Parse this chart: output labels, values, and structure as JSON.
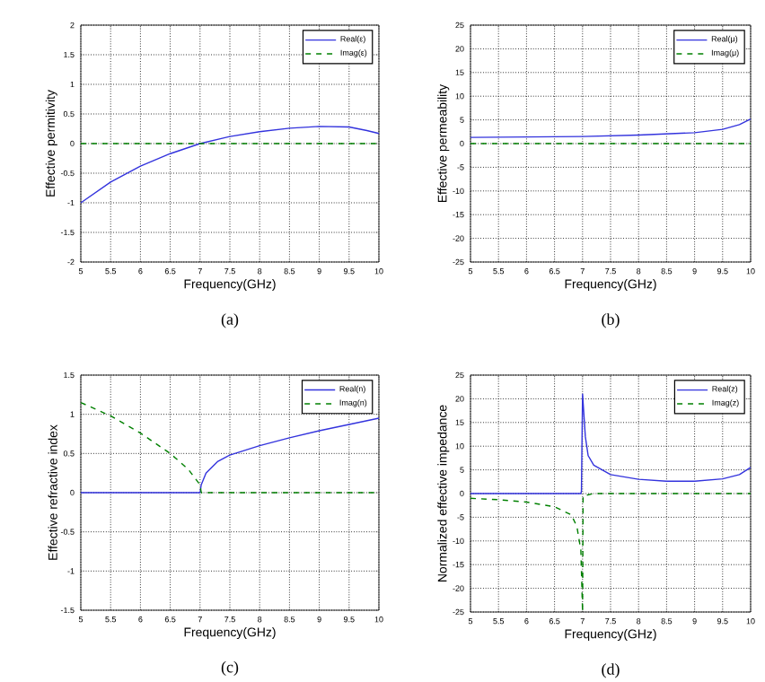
{
  "chart_data": [
    {
      "type": "line",
      "xlabel": "Frequency(GHz)",
      "ylabel": "Effective permitivity",
      "annotations": [
        "(a)"
      ],
      "grid": true,
      "legend": "top right",
      "xlim": [
        5,
        10
      ],
      "ylim": [
        -2,
        2
      ],
      "xticks": [
        5,
        5.5,
        6,
        6.5,
        7,
        7.5,
        8,
        8.5,
        9,
        9.5,
        10
      ],
      "yticks": [
        -2,
        -1.5,
        -1,
        -0.5,
        0,
        0.5,
        1,
        1.5,
        2
      ],
      "series": [
        {
          "name": "Real(ε)",
          "color": "#3333dd",
          "line_style": "solid",
          "x": [
            5,
            5.5,
            6,
            6.5,
            7,
            7.5,
            8,
            8.5,
            9,
            9.5,
            9.8,
            10
          ],
          "values": [
            -1.0,
            -0.65,
            -0.38,
            -0.17,
            0.0,
            0.12,
            0.2,
            0.26,
            0.29,
            0.28,
            0.22,
            0.17
          ]
        },
        {
          "name": "Imag(ε)",
          "color": "#008000",
          "line_style": "dashed",
          "x": [
            5,
            10
          ],
          "values": [
            0,
            0
          ]
        }
      ]
    },
    {
      "type": "line",
      "xlabel": "Frequency(GHz)",
      "ylabel": "Effective permeability",
      "annotations": [
        "(b)"
      ],
      "grid": true,
      "legend": "top right",
      "xlim": [
        5,
        10
      ],
      "ylim": [
        -25,
        25
      ],
      "xticks": [
        5,
        5.5,
        6,
        6.5,
        7,
        7.5,
        8,
        8.5,
        9,
        9.5,
        10
      ],
      "yticks": [
        -25,
        -20,
        -15,
        -10,
        -5,
        0,
        5,
        10,
        15,
        20,
        25
      ],
      "series": [
        {
          "name": "Real(μ)",
          "color": "#3333dd",
          "line_style": "solid",
          "x": [
            5,
            6,
            7,
            8,
            9,
            9.5,
            9.8,
            10
          ],
          "values": [
            1.3,
            1.4,
            1.5,
            1.8,
            2.3,
            3.0,
            4.0,
            5.2
          ]
        },
        {
          "name": "Imag(μ)",
          "color": "#008000",
          "line_style": "dashed",
          "x": [
            5,
            10
          ],
          "values": [
            0,
            0
          ]
        }
      ]
    },
    {
      "type": "line",
      "xlabel": "Frequency(GHz)",
      "ylabel": "Effective refractive index",
      "annotations": [
        "(c)"
      ],
      "grid": true,
      "legend": "top right",
      "xlim": [
        5,
        10
      ],
      "ylim": [
        -1.5,
        1.5
      ],
      "xticks": [
        5,
        5.5,
        6,
        6.5,
        7,
        7.5,
        8,
        8.5,
        9,
        9.5,
        10
      ],
      "yticks": [
        -1.5,
        -1,
        -0.5,
        0,
        0.5,
        1,
        1.5
      ],
      "series": [
        {
          "name": "Real(n)",
          "color": "#3333dd",
          "line_style": "solid",
          "x": [
            5,
            7,
            7.02,
            7.1,
            7.3,
            7.5,
            8,
            8.5,
            9,
            9.5,
            10
          ],
          "values": [
            0,
            0,
            0.1,
            0.25,
            0.4,
            0.48,
            0.6,
            0.7,
            0.79,
            0.87,
            0.95
          ]
        },
        {
          "name": "Imag(n)",
          "color": "#008000",
          "line_style": "dashed",
          "x": [
            5,
            5.5,
            6,
            6.5,
            6.8,
            7,
            7.02,
            10
          ],
          "values": [
            1.15,
            0.98,
            0.76,
            0.5,
            0.3,
            0.1,
            0,
            0
          ]
        }
      ]
    },
    {
      "type": "line",
      "xlabel": "Frequency(GHz)",
      "ylabel": "Normalized effective impedance",
      "annotations": [
        "(d)"
      ],
      "grid": true,
      "legend": "top right",
      "xlim": [
        5,
        10
      ],
      "ylim": [
        -25,
        25
      ],
      "xticks": [
        5,
        5.5,
        6,
        6.5,
        7,
        7.5,
        8,
        8.5,
        9,
        9.5,
        10
      ],
      "yticks": [
        -25,
        -20,
        -15,
        -10,
        -5,
        0,
        5,
        10,
        15,
        20,
        25
      ],
      "series": [
        {
          "name": "Real(z)",
          "color": "#3333dd",
          "line_style": "solid",
          "x": [
            5,
            6.97,
            6.98,
            7.0,
            7.05,
            7.1,
            7.2,
            7.5,
            8,
            8.5,
            9,
            9.5,
            9.8,
            10
          ],
          "values": [
            0,
            0,
            0.5,
            21,
            12,
            8,
            6,
            4,
            3,
            2.6,
            2.6,
            3.1,
            4,
            5.5
          ]
        },
        {
          "name": "Imag(z)",
          "color": "#008000",
          "line_style": "dashed",
          "x": [
            5,
            5.5,
            6,
            6.5,
            6.8,
            6.9,
            6.97,
            7.0,
            7.01,
            7.2,
            10
          ],
          "values": [
            -1,
            -1.3,
            -1.8,
            -2.8,
            -4.5,
            -7,
            -12,
            -25,
            -0.5,
            0,
            0
          ]
        }
      ]
    }
  ]
}
